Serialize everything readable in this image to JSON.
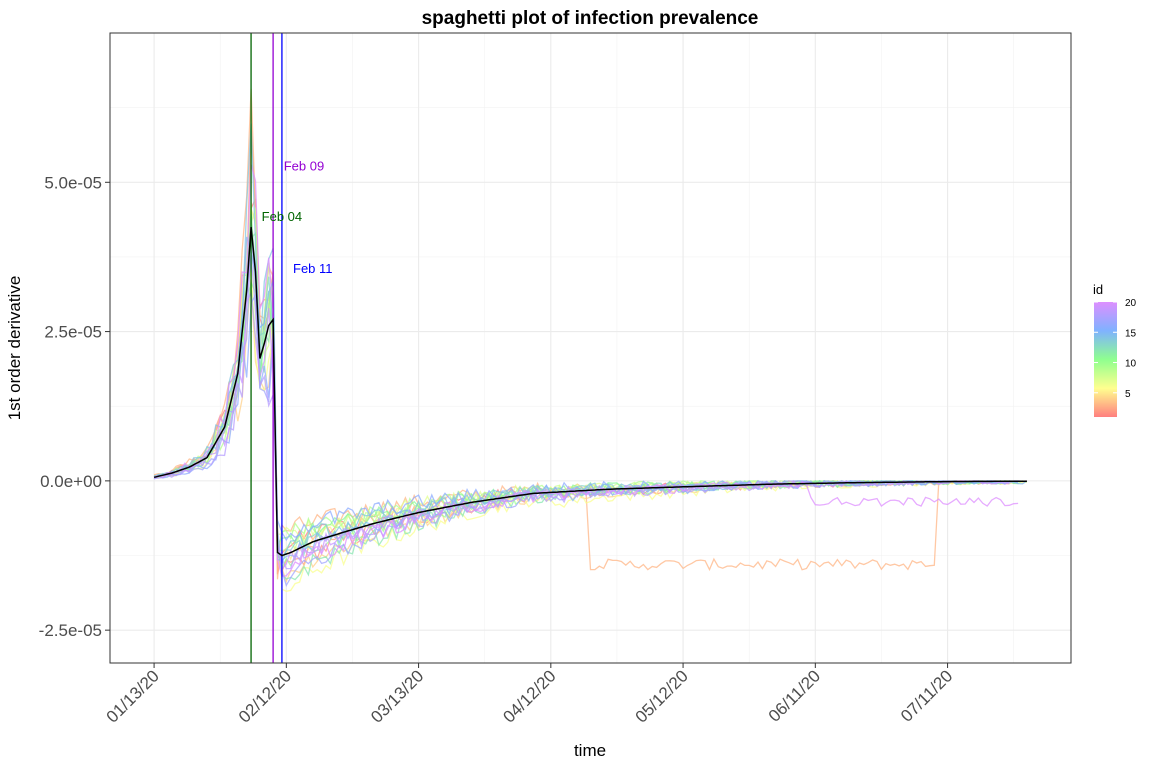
{
  "chart_data": {
    "type": "line",
    "title": "spaghetti plot of infection prevalence",
    "xlabel": "time",
    "ylabel": "1st order derivative",
    "x_axis": {
      "type": "date",
      "start": "2020-01-13",
      "end": "2020-07-29",
      "ticks": [
        {
          "date": "2020-01-13",
          "label": "01/13/20"
        },
        {
          "date": "2020-02-12",
          "label": "02/12/20"
        },
        {
          "date": "2020-03-13",
          "label": "03/13/20"
        },
        {
          "date": "2020-04-12",
          "label": "04/12/20"
        },
        {
          "date": "2020-05-12",
          "label": "05/12/20"
        },
        {
          "date": "2020-06-11",
          "label": "06/11/20"
        },
        {
          "date": "2020-07-11",
          "label": "07/11/20"
        }
      ],
      "range": [
        "2020-01-03",
        "2020-08-08"
      ]
    },
    "y_axis": {
      "ticks": [
        {
          "value": -2.5e-05,
          "label": "-2.5e-05"
        },
        {
          "value": 0,
          "label": "0.0e+00"
        },
        {
          "value": 2.5e-05,
          "label": "2.5e-05"
        },
        {
          "value": 5e-05,
          "label": "5.0e-05"
        }
      ],
      "range": [
        -3.05e-05,
        7.5e-05
      ]
    },
    "grid": true,
    "vlines": [
      {
        "date": "2020-02-04",
        "color": "#006400"
      },
      {
        "date": "2020-02-09",
        "color": "#9400D3"
      },
      {
        "date": "2020-02-11",
        "color": "#0000FF"
      }
    ],
    "annotations": [
      {
        "text": "Feb 09",
        "date": "2020-02-16",
        "value": 5.2e-05,
        "color": "#9400D3"
      },
      {
        "text": "Feb 04",
        "date": "2020-02-11",
        "value": 4.35e-05,
        "color": "#006400"
      },
      {
        "text": "Feb 11",
        "date": "2020-02-18",
        "value": 3.48e-05,
        "color": "#0000FF"
      }
    ],
    "mean_line_color": "#000000",
    "mean_series": {
      "dates": [
        "2020-01-13",
        "2020-01-17",
        "2020-01-21",
        "2020-01-25",
        "2020-01-29",
        "2020-02-01",
        "2020-02-03",
        "2020-02-04",
        "2020-02-05",
        "2020-02-06",
        "2020-02-07",
        "2020-02-08",
        "2020-02-09",
        "2020-02-10",
        "2020-02-11",
        "2020-02-13",
        "2020-02-18",
        "2020-02-25",
        "2020-03-03",
        "2020-03-13",
        "2020-03-25",
        "2020-04-08",
        "2020-04-25",
        "2020-05-12",
        "2020-06-01",
        "2020-06-20",
        "2020-07-11",
        "2020-07-29"
      ],
      "values": [
        6e-07,
        1.3e-06,
        2.3e-06,
        3.9e-06,
        9e-06,
        1.8e-05,
        3.2e-05,
        4.25e-05,
        3.5e-05,
        2.05e-05,
        2.3e-05,
        2.6e-05,
        2.7e-05,
        -1.2e-05,
        -1.25e-05,
        -1.2e-05,
        -1.02e-05,
        -8.6e-06,
        -7.1e-06,
        -5.3e-06,
        -3.6e-06,
        -2.1e-06,
        -1.4e-06,
        -1e-06,
        -5.5e-07,
        -3e-07,
        -1.2e-07,
        -5e-08
      ]
    },
    "series_count": 20,
    "id_color_ramp": {
      "low": "#ff7f7f",
      "mid_low": "#ffff8f",
      "mid": "#8fff8f",
      "mid_high": "#7fb2ff",
      "high": "#dd8fff"
    },
    "legend": {
      "title": "id",
      "labels": [
        "20",
        "15",
        "10",
        "5"
      ],
      "values": [
        20,
        15,
        10,
        5
      ],
      "min": 1,
      "max": 20,
      "position": "right"
    }
  }
}
